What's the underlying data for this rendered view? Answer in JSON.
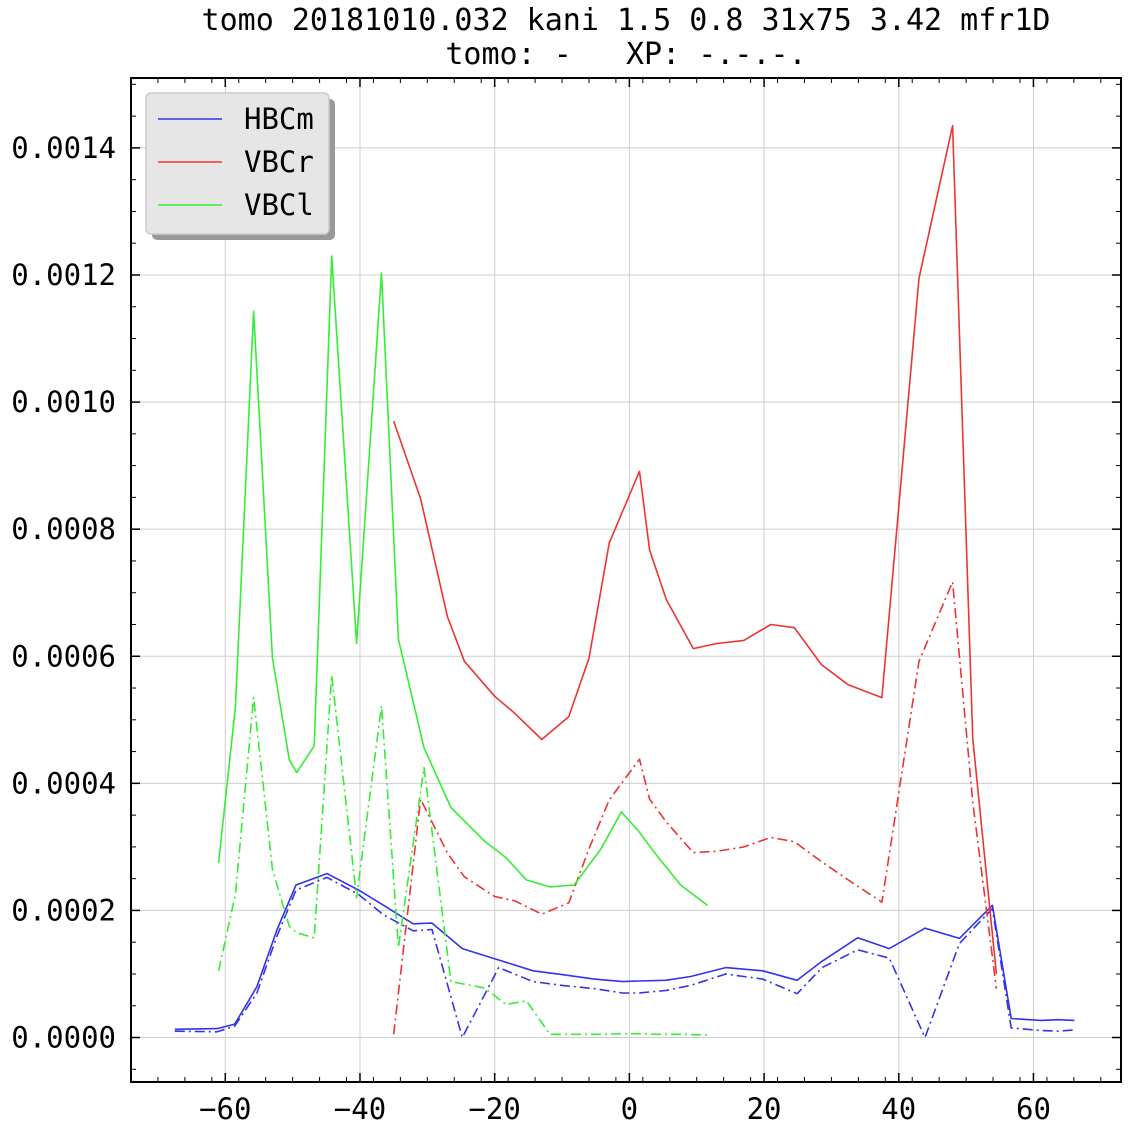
{
  "chart_data": {
    "type": "line",
    "title": "tomo 20181010.032 kani 1.5 0.8 31x75 3.42 mfr1D",
    "subtitle": "tomo: -   XP: -.-.-.",
    "xlabel": "",
    "ylabel": "",
    "xlim": [
      -74,
      73
    ],
    "ylim": [
      -7e-05,
      0.00151
    ],
    "grid": true,
    "legend_position": "top-left",
    "x_ticks": [
      -60,
      -40,
      -20,
      0,
      20,
      40,
      60
    ],
    "x_tick_labels": [
      "−60",
      "−40",
      "−20",
      "0",
      "20",
      "40",
      "60"
    ],
    "y_ticks": [
      0.0,
      0.0002,
      0.0004,
      0.0006,
      0.0008,
      0.001,
      0.0012,
      0.0014
    ],
    "y_tick_labels": [
      "0.0000",
      "0.0002",
      "0.0004",
      "0.0006",
      "0.0008",
      "0.0010",
      "0.0012",
      "0.0014"
    ],
    "legend": [
      {
        "label": "HBCm",
        "color": "#3333ee"
      },
      {
        "label": "VBCr",
        "color": "#ee3333"
      },
      {
        "label": "VBCl",
        "color": "#33ee33"
      }
    ],
    "series": [
      {
        "name": "HBCm",
        "color": "#3333ee",
        "style": "solid",
        "x": [
          -67.5,
          -61.2,
          -58.6,
          -55.3,
          -52.3,
          -49.5,
          -44.9,
          -40.2,
          -36.5,
          -32.1,
          -29.3,
          -24.8,
          -19.4,
          -14.3,
          -10.0,
          -5.2,
          -1.0,
          1.3,
          5.4,
          9.1,
          14.3,
          19.8,
          24.9,
          28.6,
          33.9,
          38.6,
          43.9,
          49.0,
          53.9,
          56.7,
          61.1,
          63.7,
          66.1
        ],
        "y": [
          1.3e-05,
          1.4e-05,
          2.1e-05,
          8e-05,
          0.00017,
          0.00024,
          0.000258,
          0.000232,
          0.000208,
          0.000179,
          0.00018,
          0.00014,
          0.000122,
          0.000105,
          9.9e-05,
          9.2e-05,
          8.8e-05,
          8.9e-05,
          9e-05,
          9.6e-05,
          0.00011,
          0.000105,
          9e-05,
          0.00012,
          0.000157,
          0.00014,
          0.000172,
          0.000156,
          0.000208,
          3e-05,
          2.7e-05,
          2.8e-05,
          2.7e-05
        ]
      },
      {
        "name": "HBCm",
        "color": "#3333ee",
        "style": "dashdot",
        "x": [
          -67.5,
          -61.2,
          -58.6,
          -55.3,
          -52.3,
          -49.5,
          -44.9,
          -40.2,
          -36.5,
          -32.1,
          -29.3,
          -24.8,
          -19.4,
          -14.3,
          -10.0,
          -5.2,
          -1.0,
          1.3,
          5.4,
          9.1,
          14.3,
          19.8,
          24.9,
          28.6,
          33.9,
          38.6,
          43.9,
          49.0,
          53.9,
          56.7,
          61.1,
          63.7,
          66.1
        ],
        "y": [
          1e-05,
          9e-06,
          1.8e-05,
          7e-05,
          0.00016,
          0.000232,
          0.000252,
          0.000225,
          0.000193,
          0.000168,
          0.00017,
          0.0,
          0.00011,
          8.8e-05,
          8.2e-05,
          7.7e-05,
          7e-05,
          7e-05,
          7.4e-05,
          8.2e-05,
          0.0001,
          9.2e-05,
          6.9e-05,
          0.00011,
          0.000138,
          0.000125,
          0.0,
          0.000148,
          0.000203,
          1.5e-05,
          1.1e-05,
          1e-05,
          1.2e-05
        ]
      },
      {
        "name": "VBCr",
        "color": "#ee3333",
        "style": "solid",
        "x": [
          -35,
          -31,
          -27,
          -24.5,
          -20,
          -17,
          -13,
          -9,
          -6,
          -3,
          1.5,
          3,
          5.5,
          9.5,
          13,
          17,
          21,
          24.5,
          28.5,
          32.5,
          37.5,
          43,
          48,
          51,
          54.5
        ],
        "y": [
          0.00097,
          0.000848,
          0.000662,
          0.000592,
          0.000537,
          0.00051,
          0.000469,
          0.000505,
          0.000597,
          0.000778,
          0.000891,
          0.000767,
          0.000689,
          0.000612,
          0.00062,
          0.000625,
          0.00065,
          0.000645,
          0.000587,
          0.000555,
          0.000535,
          0.001195,
          0.001435,
          0.00047,
          0.0001
        ]
      },
      {
        "name": "VBCr",
        "color": "#ee3333",
        "style": "dashdot",
        "x": [
          -35,
          -31,
          -27,
          -24.5,
          -20,
          -17,
          -13,
          -9,
          -6,
          -3,
          1.5,
          3,
          5.5,
          9.5,
          13,
          17,
          21,
          24.5,
          28.5,
          32.5,
          37.5,
          43,
          48,
          51,
          54.5
        ],
        "y": [
          5e-06,
          0.000375,
          0.00029,
          0.000253,
          0.000222,
          0.000215,
          0.000194,
          0.000212,
          0.000297,
          0.000374,
          0.000438,
          0.000375,
          0.000339,
          0.000291,
          0.000293,
          0.0003,
          0.000315,
          0.000308,
          0.000277,
          0.000248,
          0.000213,
          0.000592,
          0.000717,
          0.00037,
          7.7e-05
        ]
      },
      {
        "name": "VBCl",
        "color": "#33ee33",
        "style": "solid",
        "x": [
          -61,
          -58.5,
          -55.8,
          -53,
          -50.5,
          -49.4,
          -46.8,
          -44.2,
          -40.5,
          -36.8,
          -34.3,
          -30.5,
          -26.5,
          -21.5,
          -18.3,
          -15.3,
          -11.8,
          -8.2,
          -4.2,
          -1.2,
          1.2,
          4.1,
          7.6,
          11.6
        ],
        "y": [
          0.000275,
          0.00052,
          0.001143,
          0.000598,
          0.000437,
          0.000417,
          0.000459,
          0.00123,
          0.00062,
          0.001203,
          0.000627,
          0.000456,
          0.000362,
          0.000309,
          0.000283,
          0.000248,
          0.000237,
          0.00024,
          0.000297,
          0.000355,
          0.000327,
          0.000286,
          0.00024,
          0.000208
        ]
      },
      {
        "name": "VBCl",
        "color": "#33ee33",
        "style": "dashdot",
        "x": [
          -61,
          -58.5,
          -55.8,
          -53,
          -50.5,
          -49.4,
          -46.8,
          -44.2,
          -40.5,
          -36.8,
          -34.3,
          -30.5,
          -26.5,
          -21.5,
          -18.3,
          -15.3,
          -11.8,
          -8.2,
          -4.2,
          -1.2,
          1.2,
          4.1,
          7.6,
          11.6
        ],
        "y": [
          0.000105,
          0.000225,
          0.000535,
          0.000265,
          0.000175,
          0.000165,
          0.000157,
          0.00057,
          0.00022,
          0.000522,
          0.000142,
          0.000425,
          8.8e-05,
          7.8e-05,
          5.2e-05,
          5.8e-05,
          5e-06,
          5e-06,
          5e-06,
          6e-06,
          6e-06,
          5e-06,
          5e-06,
          4e-06
        ]
      }
    ]
  }
}
